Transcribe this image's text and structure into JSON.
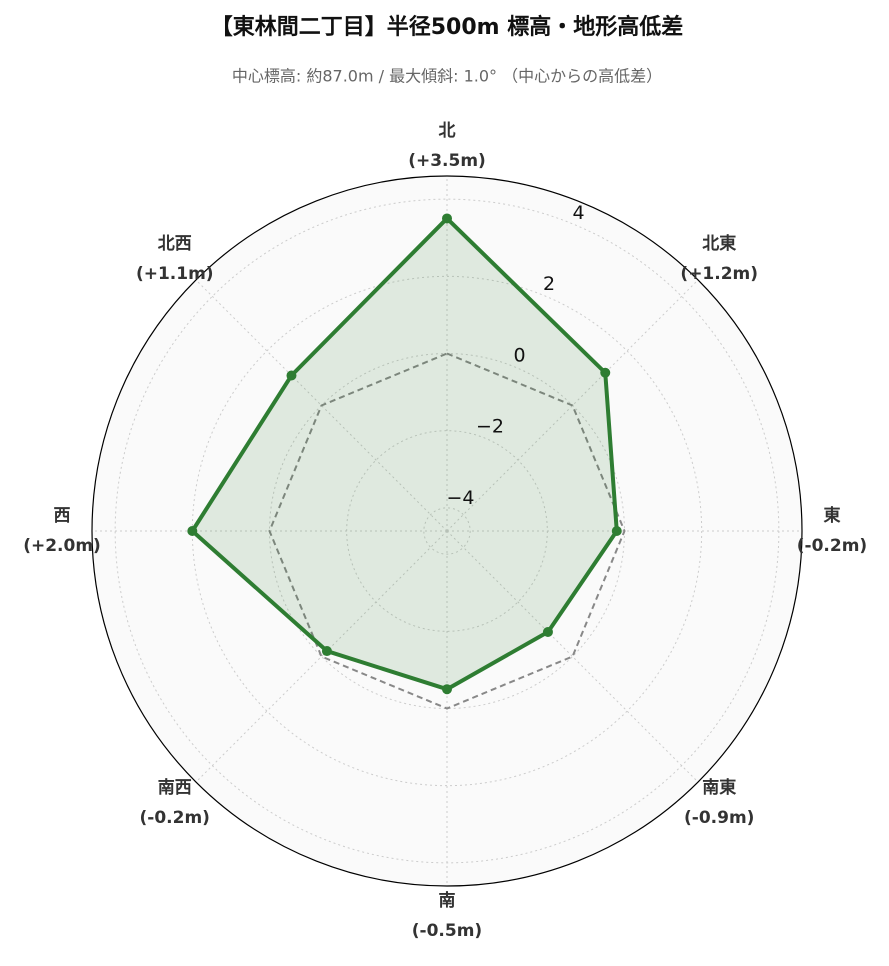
{
  "chart_data": {
    "type": "radar",
    "title": "【東林間二丁目】半径500m 標高・地形高低差",
    "subtitle": "中心標高: 約87.0m / 最大傾斜: 1.0° （中心からの高低差）",
    "categories": [
      "北",
      "北東",
      "東",
      "南東",
      "南",
      "南西",
      "西",
      "北西"
    ],
    "values": [
      3.5,
      1.2,
      -0.2,
      -0.9,
      -0.5,
      -0.2,
      2.0,
      1.1
    ],
    "value_labels": [
      "(+3.5m)",
      "(+1.2m)",
      "(-0.2m)",
      "(-0.9m)",
      "(-0.5m)",
      "(-0.2m)",
      "(+2.0m)",
      "(+1.1m)"
    ],
    "color": "#2e7d32",
    "reference_value": 0,
    "rlim": [
      -4.6,
      4.6
    ],
    "rticks": [
      {
        "value": -4,
        "label": "−4"
      },
      {
        "value": -2,
        "label": "−2"
      },
      0,
      2,
      4
    ],
    "grid": true
  }
}
